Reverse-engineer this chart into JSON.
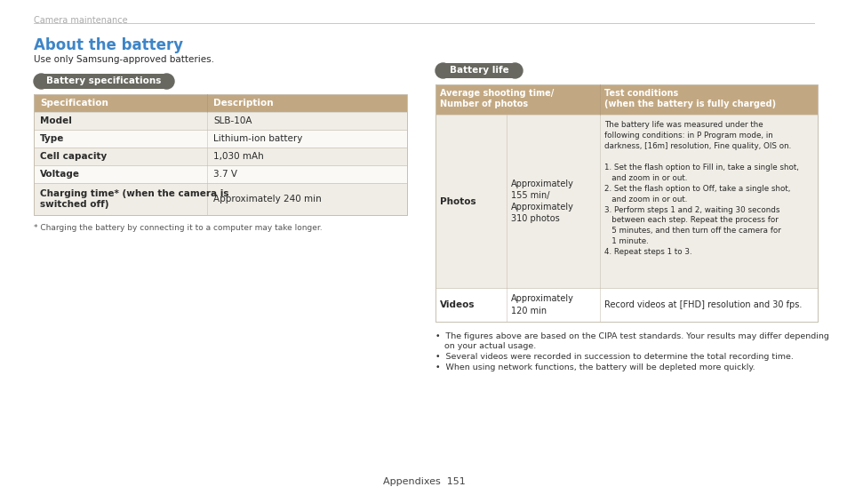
{
  "background_color": "#ffffff",
  "header_text": "Camera maintenance",
  "header_line_color": "#c8c8c8",
  "title": "About the battery",
  "title_color": "#3d85c8",
  "subtitle": "Use only Samsung-approved batteries.",
  "section1_label": "Battery specifications",
  "section1_label_bg": "#686860",
  "section1_label_color": "#ffffff",
  "spec_table_header_bg": "#c2a882",
  "spec_table_row_bg_odd": "#f0ede6",
  "spec_table_row_bg_even": "#faf9f6",
  "spec_table_border": "#c8c0b0",
  "spec_headers": [
    "Specification",
    "Description"
  ],
  "spec_rows": [
    [
      "Model",
      "SLB-10A"
    ],
    [
      "Type",
      "Lithium-ion battery"
    ],
    [
      "Cell capacity",
      "1,030 mAh"
    ],
    [
      "Voltage",
      "3.7 V"
    ],
    [
      "Charging time* (when the camera is\nswitched off)",
      "Approximately 240 min"
    ]
  ],
  "spec_footnote": "* Charging the battery by connecting it to a computer may take longer.",
  "section2_label": "Battery life",
  "section2_label_bg": "#686860",
  "section2_label_color": "#ffffff",
  "life_table_header_bg": "#c2a882",
  "life_table_header_color": "#ffffff",
  "life_table_border": "#c8c0b0",
  "life_table_row_bg": "#f0ede6",
  "life_headers_col1": "Average shooting time/\nNumber of photos",
  "life_headers_col3": "Test conditions\n(when the battery is fully charged)",
  "life_row1_col1": "Photos",
  "life_row1_col2": "Approximately\n155 min/\nApproximately\n310 photos",
  "life_row2_col1": "Videos",
  "life_row2_col2": "Approximately\n120 min",
  "life_row2_col3": "Record videos at [FHD] resolution and 30 fps.",
  "life_footnotes": [
    "•  The figures above are based on the CIPA test standards. Your results may differ depending\n   on your actual usage.",
    "•  Several videos were recorded in succession to determine the total recording time.",
    "•  When using network functions, the battery will be depleted more quickly."
  ],
  "footer_text": "Appendixes  151",
  "text_color": "#2a2a2a"
}
